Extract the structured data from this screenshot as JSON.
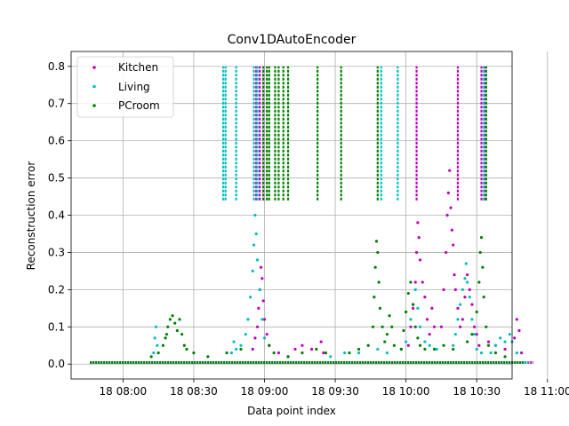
{
  "chart_data": {
    "type": "scatter",
    "title": "Conv1DAutoEncoder",
    "xlabel": "Data point index",
    "ylabel": "Reconstruction error",
    "x_domain_minutes": [
      -22,
      165
    ],
    "ylim": [
      -0.04,
      0.84
    ],
    "x_ticks": [
      {
        "minute": 0,
        "label": "18 08:00"
      },
      {
        "minute": 30,
        "label": "18 08:30"
      },
      {
        "minute": 60,
        "label": "18 09:00"
      },
      {
        "minute": 90,
        "label": "18 09:30"
      },
      {
        "minute": 120,
        "label": "18 10:00"
      },
      {
        "minute": 150,
        "label": "18 10:30"
      },
      {
        "minute": 180,
        "label": "18 11:00"
      }
    ],
    "y_ticks": [
      0.0,
      0.1,
      0.2,
      0.3,
      0.4,
      0.5,
      0.6,
      0.7,
      0.8
    ],
    "y_tick_labels": [
      "0.0",
      "0.1",
      "0.2",
      "0.3",
      "0.4",
      "0.5",
      "0.6",
      "0.7",
      "0.8"
    ],
    "grid": true,
    "legend_position": "upper-left",
    "series": [
      {
        "name": "Kitchen",
        "color": "#bf00bf",
        "baseline_range": [
          -14,
          174
        ],
        "points": [
          [
            55,
            0.04
          ],
          [
            56,
            0.07
          ],
          [
            57,
            0.1
          ],
          [
            57.5,
            0.15
          ],
          [
            58,
            0.2
          ],
          [
            58.5,
            0.26
          ],
          [
            59,
            0.23
          ],
          [
            59.5,
            0.17
          ],
          [
            60,
            0.12
          ],
          [
            61,
            0.08
          ],
          [
            62,
            0.05
          ],
          [
            66,
            0.03
          ],
          [
            70,
            0.02
          ],
          [
            73,
            0.04
          ],
          [
            76,
            0.05
          ],
          [
            80,
            0.04
          ],
          [
            84,
            0.06
          ],
          [
            85,
            0.03
          ],
          [
            121,
            0.05
          ],
          [
            122,
            0.1
          ],
          [
            123,
            0.15
          ],
          [
            124,
            0.22
          ],
          [
            124.5,
            0.3
          ],
          [
            125,
            0.38
          ],
          [
            125.5,
            0.34
          ],
          [
            126,
            0.28
          ],
          [
            127,
            0.22
          ],
          [
            128,
            0.18
          ],
          [
            129,
            0.12
          ],
          [
            130,
            0.08
          ],
          [
            131,
            0.15
          ],
          [
            132,
            0.1
          ],
          [
            135,
            0.1
          ],
          [
            136,
            0.2
          ],
          [
            137,
            0.3
          ],
          [
            137.5,
            0.4
          ],
          [
            138,
            0.46
          ],
          [
            138.5,
            0.52
          ],
          [
            139,
            0.42
          ],
          [
            139.5,
            0.36
          ],
          [
            140,
            0.32
          ],
          [
            140.5,
            0.24
          ],
          [
            141,
            0.2
          ],
          [
            142,
            0.15
          ],
          [
            143,
            0.1
          ],
          [
            144,
            0.12
          ],
          [
            145,
            0.18
          ],
          [
            146,
            0.24
          ],
          [
            147,
            0.2
          ],
          [
            148,
            0.16
          ],
          [
            149,
            0.1
          ],
          [
            150,
            0.08
          ],
          [
            151,
            0.05
          ],
          [
            155,
            0.06
          ],
          [
            158,
            0.05
          ],
          [
            162,
            0.04
          ],
          [
            166,
            0.07
          ],
          [
            167,
            0.12
          ],
          [
            168,
            0.09
          ],
          [
            169,
            0.03
          ]
        ],
        "event_lines": [
          {
            "minute": 56.5,
            "from": 0.44,
            "to": 0.8
          },
          {
            "minute": 58,
            "from": 0.44,
            "to": 0.8
          },
          {
            "minute": 59.5,
            "from": 0.44,
            "to": 0.8
          },
          {
            "minute": 124.5,
            "from": 0.44,
            "to": 0.8
          },
          {
            "minute": 142,
            "from": 0.44,
            "to": 0.8
          },
          {
            "minute": 152,
            "from": 0.44,
            "to": 0.8
          },
          {
            "minute": 153.5,
            "from": 0.44,
            "to": 0.8
          }
        ]
      },
      {
        "name": "Living",
        "color": "#00bfbf",
        "baseline_range": [
          -14,
          172
        ],
        "points": [
          [
            13,
            0.03
          ],
          [
            13.5,
            0.07
          ],
          [
            14,
            0.1
          ],
          [
            14.5,
            0.05
          ],
          [
            46,
            0.03
          ],
          [
            47,
            0.06
          ],
          [
            48,
            0.04
          ],
          [
            50,
            0.05
          ],
          [
            52,
            0.08
          ],
          [
            53,
            0.12
          ],
          [
            54,
            0.18
          ],
          [
            55,
            0.25
          ],
          [
            55.5,
            0.32
          ],
          [
            56,
            0.4
          ],
          [
            56.5,
            0.35
          ],
          [
            57,
            0.28
          ],
          [
            58,
            0.2
          ],
          [
            59,
            0.12
          ],
          [
            60,
            0.07
          ],
          [
            88,
            0.02
          ],
          [
            94,
            0.03
          ],
          [
            100,
            0.03
          ],
          [
            108,
            0.04
          ],
          [
            112,
            0.03
          ],
          [
            118,
            0.04
          ],
          [
            120,
            0.06
          ],
          [
            122,
            0.12
          ],
          [
            123,
            0.16
          ],
          [
            124,
            0.2
          ],
          [
            125,
            0.15
          ],
          [
            126,
            0.1
          ],
          [
            128,
            0.06
          ],
          [
            130,
            0.05
          ],
          [
            133,
            0.04
          ],
          [
            140,
            0.05
          ],
          [
            141,
            0.08
          ],
          [
            142,
            0.12
          ],
          [
            143,
            0.16
          ],
          [
            144,
            0.2
          ],
          [
            145,
            0.23
          ],
          [
            145.5,
            0.27
          ],
          [
            146,
            0.22
          ],
          [
            147,
            0.18
          ],
          [
            148,
            0.12
          ],
          [
            149,
            0.08
          ],
          [
            150,
            0.04
          ],
          [
            152,
            0.03
          ],
          [
            156,
            0.03
          ],
          [
            158,
            0.05
          ],
          [
            160,
            0.07
          ],
          [
            162,
            0.06
          ],
          [
            164,
            0.08
          ],
          [
            165,
            0.06
          ],
          [
            167,
            0.03
          ]
        ],
        "event_lines": [
          {
            "minute": 42.5,
            "from": 0.44,
            "to": 0.8
          },
          {
            "minute": 43.5,
            "from": 0.44,
            "to": 0.8
          },
          {
            "minute": 48,
            "from": 0.44,
            "to": 0.8
          },
          {
            "minute": 55.5,
            "from": 0.44,
            "to": 0.8
          },
          {
            "minute": 57,
            "from": 0.44,
            "to": 0.8
          },
          {
            "minute": 109.5,
            "from": 0.44,
            "to": 0.8
          },
          {
            "minute": 116.5,
            "from": 0.44,
            "to": 0.8
          },
          {
            "minute": 153,
            "from": 0.44,
            "to": 0.8
          }
        ]
      },
      {
        "name": "PCroom",
        "color": "#007f00",
        "baseline_range": [
          -14,
          170
        ],
        "points": [
          [
            12,
            0.02
          ],
          [
            15,
            0.03
          ],
          [
            17,
            0.05
          ],
          [
            18,
            0.07
          ],
          [
            18.5,
            0.08
          ],
          [
            19,
            0.1
          ],
          [
            20,
            0.12
          ],
          [
            21,
            0.13
          ],
          [
            22,
            0.11
          ],
          [
            23,
            0.09
          ],
          [
            24,
            0.12
          ],
          [
            25,
            0.08
          ],
          [
            26,
            0.05
          ],
          [
            27,
            0.04
          ],
          [
            30,
            0.03
          ],
          [
            36,
            0.02
          ],
          [
            44,
            0.03
          ],
          [
            50,
            0.04
          ],
          [
            62,
            0.05
          ],
          [
            64,
            0.03
          ],
          [
            70,
            0.02
          ],
          [
            76,
            0.03
          ],
          [
            82,
            0.04
          ],
          [
            86,
            0.03
          ],
          [
            96,
            0.03
          ],
          [
            100,
            0.04
          ],
          [
            104,
            0.05
          ],
          [
            106,
            0.1
          ],
          [
            106.5,
            0.18
          ],
          [
            107,
            0.26
          ],
          [
            107.5,
            0.33
          ],
          [
            108,
            0.3
          ],
          [
            108.5,
            0.22
          ],
          [
            109,
            0.15
          ],
          [
            110,
            0.1
          ],
          [
            111,
            0.06
          ],
          [
            112,
            0.08
          ],
          [
            113,
            0.13
          ],
          [
            114,
            0.1
          ],
          [
            115,
            0.05
          ],
          [
            118,
            0.04
          ],
          [
            119,
            0.09
          ],
          [
            120,
            0.14
          ],
          [
            121,
            0.19
          ],
          [
            122,
            0.22
          ],
          [
            123,
            0.16
          ],
          [
            124,
            0.1
          ],
          [
            125,
            0.07
          ],
          [
            126,
            0.05
          ],
          [
            128,
            0.04
          ],
          [
            132,
            0.04
          ],
          [
            136,
            0.05
          ],
          [
            140,
            0.04
          ],
          [
            146,
            0.06
          ],
          [
            148,
            0.08
          ],
          [
            150,
            0.14
          ],
          [
            151,
            0.22
          ],
          [
            151.5,
            0.3
          ],
          [
            152,
            0.34
          ],
          [
            152.5,
            0.26
          ],
          [
            153,
            0.18
          ],
          [
            154,
            0.1
          ],
          [
            155,
            0.05
          ],
          [
            158,
            0.03
          ],
          [
            162,
            0.02
          ]
        ],
        "event_lines": [
          {
            "minute": 59.5,
            "from": 0.44,
            "to": 0.8
          },
          {
            "minute": 61,
            "from": 0.44,
            "to": 0.8
          },
          {
            "minute": 62,
            "from": 0.44,
            "to": 0.8
          },
          {
            "minute": 64.5,
            "from": 0.44,
            "to": 0.8
          },
          {
            "minute": 66,
            "from": 0.44,
            "to": 0.8
          },
          {
            "minute": 68,
            "from": 0.44,
            "to": 0.8
          },
          {
            "minute": 70,
            "from": 0.44,
            "to": 0.8
          },
          {
            "minute": 82.5,
            "from": 0.44,
            "to": 0.8
          },
          {
            "minute": 92.5,
            "from": 0.44,
            "to": 0.8
          },
          {
            "minute": 108,
            "from": 0.44,
            "to": 0.8
          },
          {
            "minute": 154,
            "from": 0.44,
            "to": 0.8
          }
        ]
      }
    ]
  }
}
